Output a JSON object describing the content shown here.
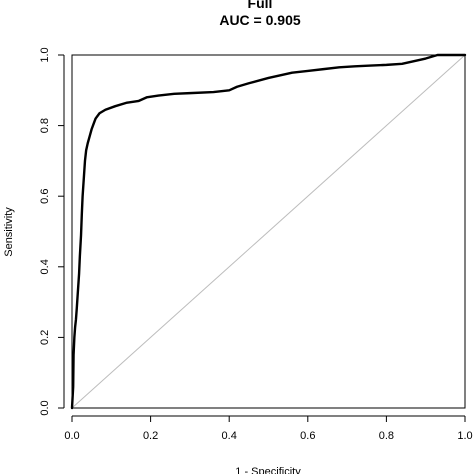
{
  "chart_data": {
    "type": "line",
    "title": "Full",
    "subtitle": "AUC = 0.905",
    "xlabel": "1 - Specificity",
    "ylabel": "Sensitivity",
    "xlim": [
      0,
      1
    ],
    "ylim": [
      0,
      1
    ],
    "xticks": [
      "0.0",
      "0.2",
      "0.4",
      "0.6",
      "0.8",
      "1.0"
    ],
    "yticks": [
      "0.0",
      "0.2",
      "0.4",
      "0.6",
      "0.8",
      "1.0"
    ],
    "grid": false,
    "colors": {
      "curve": "#000000",
      "diagonal": "#bdbdbd",
      "axes": "#000000"
    },
    "series": [
      {
        "values": [
          [
            0.0,
            0.0
          ],
          [
            0.003,
            0.06
          ],
          [
            0.004,
            0.15
          ],
          [
            0.006,
            0.2
          ],
          [
            0.008,
            0.23
          ],
          [
            0.01,
            0.25
          ],
          [
            0.012,
            0.28
          ],
          [
            0.015,
            0.33
          ],
          [
            0.018,
            0.38
          ],
          [
            0.02,
            0.43
          ],
          [
            0.023,
            0.49
          ],
          [
            0.025,
            0.55
          ],
          [
            0.027,
            0.6
          ],
          [
            0.03,
            0.65
          ],
          [
            0.033,
            0.7
          ],
          [
            0.036,
            0.73
          ],
          [
            0.04,
            0.75
          ],
          [
            0.045,
            0.77
          ],
          [
            0.05,
            0.79
          ],
          [
            0.055,
            0.805
          ],
          [
            0.06,
            0.82
          ],
          [
            0.07,
            0.835
          ],
          [
            0.085,
            0.845
          ],
          [
            0.11,
            0.855
          ],
          [
            0.14,
            0.865
          ],
          [
            0.17,
            0.87
          ],
          [
            0.19,
            0.88
          ],
          [
            0.22,
            0.885
          ],
          [
            0.26,
            0.89
          ],
          [
            0.3,
            0.892
          ],
          [
            0.36,
            0.895
          ],
          [
            0.4,
            0.9
          ],
          [
            0.42,
            0.91
          ],
          [
            0.45,
            0.92
          ],
          [
            0.5,
            0.935
          ],
          [
            0.54,
            0.945
          ],
          [
            0.56,
            0.95
          ],
          [
            0.6,
            0.955
          ],
          [
            0.64,
            0.96
          ],
          [
            0.68,
            0.965
          ],
          [
            0.72,
            0.968
          ],
          [
            0.76,
            0.97
          ],
          [
            0.8,
            0.972
          ],
          [
            0.84,
            0.975
          ],
          [
            0.86,
            0.98
          ],
          [
            0.88,
            0.985
          ],
          [
            0.9,
            0.99
          ],
          [
            0.915,
            0.995
          ],
          [
            0.93,
            1.0
          ],
          [
            1.0,
            1.0
          ]
        ]
      },
      {
        "values": [
          [
            0,
            0
          ],
          [
            1,
            1
          ]
        ]
      }
    ]
  }
}
